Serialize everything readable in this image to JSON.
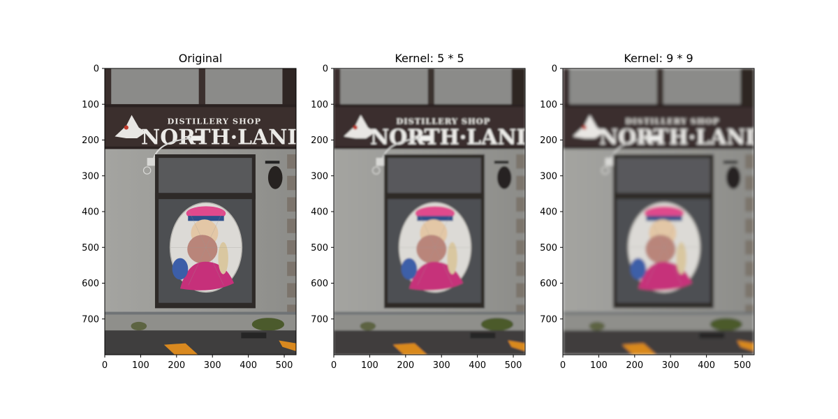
{
  "chart_data": [
    {
      "type": "image",
      "title": "Original",
      "image_content": "storefront photo: NORTH·LAND distillery shop sign above a window with a stained-glass portrait of a bearded man in a pink hat",
      "sign_lettering": {
        "small": "DISTILLERY SHOP",
        "main": "NORTH·LAND"
      },
      "blur": "none",
      "xlim": [
        0,
        533
      ],
      "ylim": [
        800,
        0
      ],
      "xticks": [
        0,
        100,
        200,
        300,
        400,
        500
      ],
      "yticks": [
        0,
        100,
        200,
        300,
        400,
        500,
        600,
        700
      ]
    },
    {
      "type": "image",
      "title": "Kernel: 5 * 5",
      "image_content": "same storefront photo, blurred with a 5x5 kernel",
      "sign_lettering": {
        "small": "DISTILLERY SHOP",
        "main": "NORTH·LAND"
      },
      "blur": "5x5",
      "xlim": [
        0,
        533
      ],
      "ylim": [
        800,
        0
      ],
      "xticks": [
        0,
        100,
        200,
        300,
        400,
        500
      ],
      "yticks": [
        0,
        100,
        200,
        300,
        400,
        500,
        600,
        700
      ]
    },
    {
      "type": "image",
      "title": "Kernel: 9 * 9",
      "image_content": "same storefront photo, blurred with a 9x9 kernel",
      "sign_lettering": {
        "small": "DISTILLERY SHOP",
        "main": "NORTH·LAND"
      },
      "blur": "9x9",
      "xlim": [
        0,
        533
      ],
      "ylim": [
        800,
        0
      ],
      "xticks": [
        0,
        100,
        200,
        300,
        400,
        500
      ],
      "yticks": [
        0,
        100,
        200,
        300,
        400,
        500,
        600,
        700
      ]
    }
  ]
}
